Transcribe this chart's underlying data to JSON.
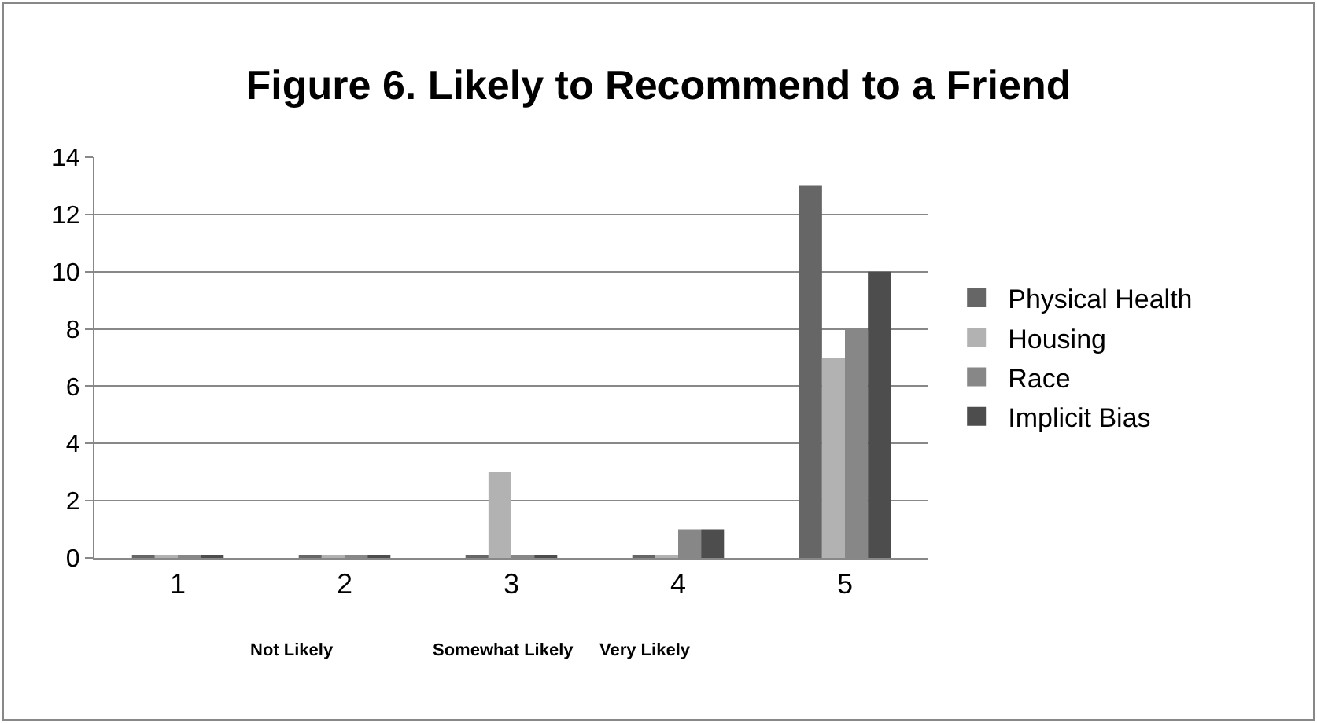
{
  "chart_data": {
    "type": "bar",
    "title": "Figure 6. Likely to Recommend to a Friend",
    "categories": [
      "1",
      "2",
      "3",
      "4",
      "5"
    ],
    "series": [
      {
        "name": "Physical Health",
        "color": "#666666",
        "values": [
          0.1,
          0.1,
          0.1,
          0.1,
          13
        ]
      },
      {
        "name": "Housing",
        "color": "#b2b2b2",
        "values": [
          0.1,
          0.1,
          3,
          0.1,
          7
        ]
      },
      {
        "name": "Race",
        "color": "#878787",
        "values": [
          0.1,
          0.1,
          0.1,
          1,
          8
        ]
      },
      {
        "name": "Implicit Bias",
        "color": "#4d4d4d",
        "values": [
          0.1,
          0.1,
          0.1,
          1,
          10
        ]
      }
    ],
    "ylim": [
      0,
      14
    ],
    "yticks": [
      0,
      2,
      4,
      6,
      8,
      10,
      12,
      14
    ],
    "grid": "y",
    "legend": "right",
    "annotations": [
      "Not Likely",
      "Somewhat Likely",
      "Very Likely"
    ]
  }
}
